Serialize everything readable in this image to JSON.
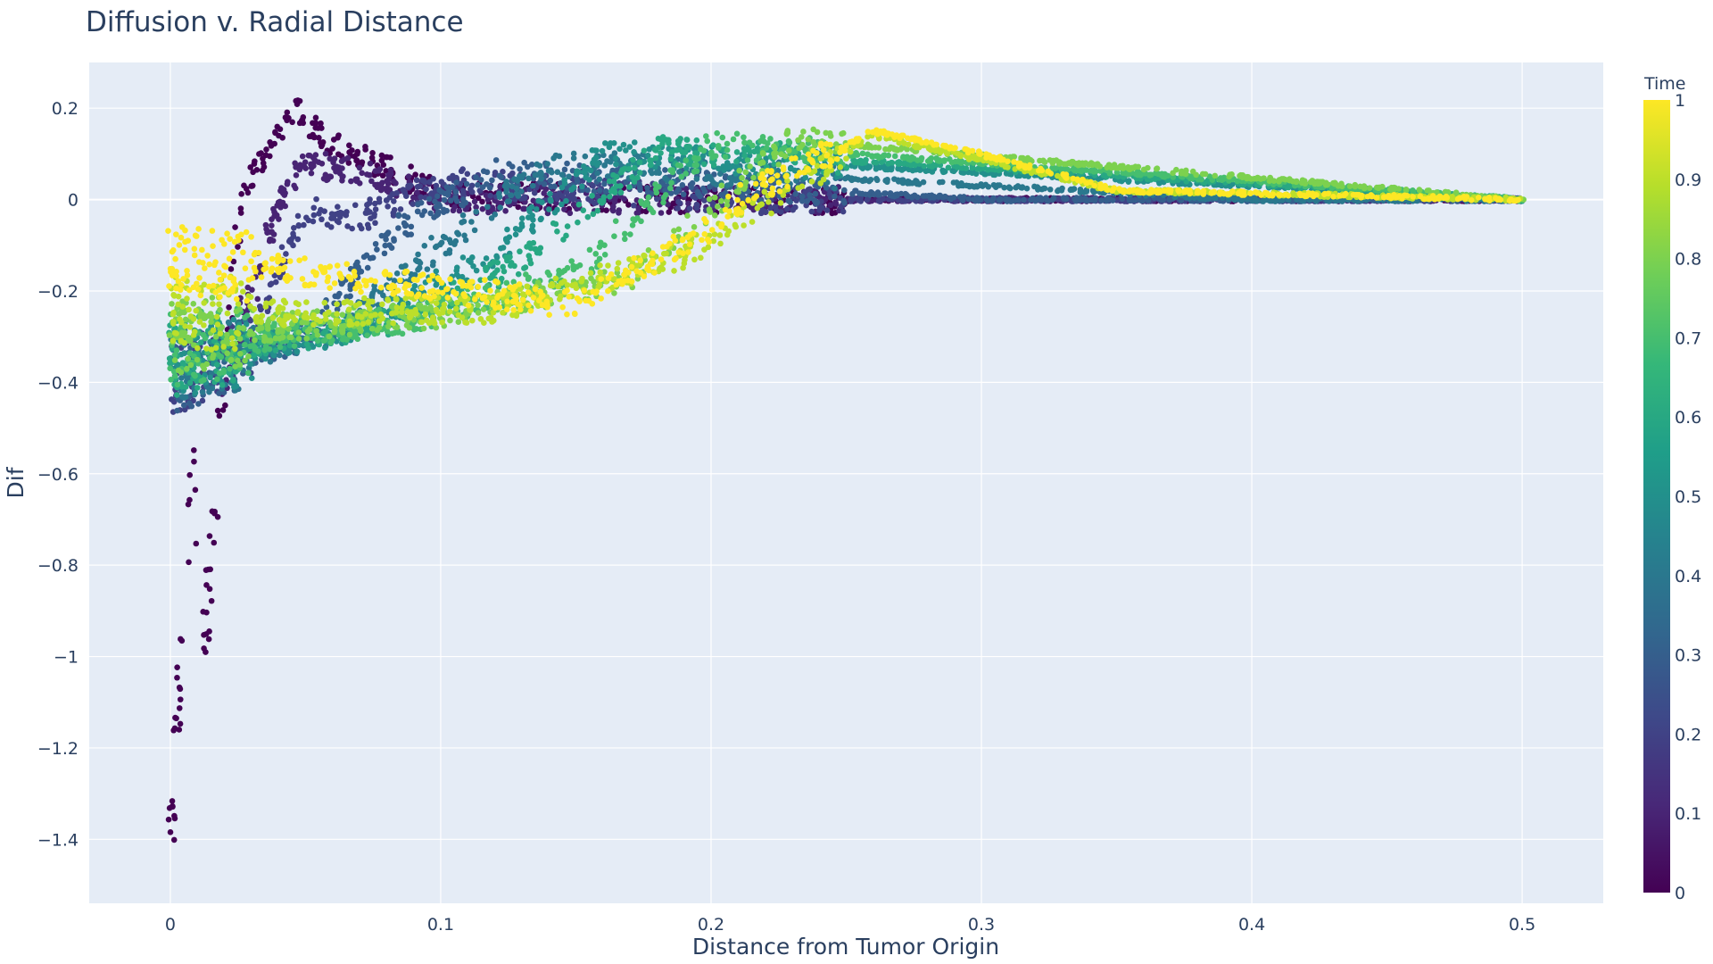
{
  "chart_data": {
    "type": "scatter",
    "title": "Diffusion v. Radial Distance",
    "xlabel": "Distance from Tumor Origin",
    "ylabel": "Dif",
    "xlim": [
      -0.03,
      0.53
    ],
    "ylim": [
      -1.54,
      0.3
    ],
    "x_ticks": [
      0,
      0.1,
      0.2,
      0.3,
      0.4,
      0.5
    ],
    "x_tick_labels": [
      "0",
      "0.1",
      "0.2",
      "0.3",
      "0.4",
      "0.5"
    ],
    "y_ticks": [
      0.2,
      0,
      -0.2,
      -0.4,
      -0.6,
      -0.8,
      -1,
      -1.2,
      -1.4
    ],
    "y_tick_labels": [
      "0.2",
      "0",
      "−0.2",
      "−0.4",
      "−0.6",
      "−0.8",
      "−1",
      "−1.2",
      "−1.4"
    ],
    "grid": true,
    "colorbar": {
      "title": "Time",
      "range": [
        0,
        1
      ],
      "ticks": [
        0,
        0.1,
        0.2,
        0.3,
        0.4,
        0.5,
        0.6,
        0.7,
        0.8,
        0.9,
        1
      ],
      "tick_labels": [
        "0",
        "0.1",
        "0.2",
        "0.3",
        "0.4",
        "0.5",
        "0.6",
        "0.7",
        "0.8",
        "0.9",
        "1"
      ],
      "colorscale": "Viridis",
      "colors": [
        "#440154",
        "#482878",
        "#3e4989",
        "#31688e",
        "#26828e",
        "#1f9e89",
        "#35b779",
        "#6ece58",
        "#b5de2b",
        "#fde725"
      ]
    },
    "series": [
      {
        "color_by": "Time",
        "time_values": [
          0,
          0.1,
          0.2,
          0.3,
          0.4,
          0.5,
          0.6,
          0.7,
          0.8,
          0.9,
          1.0
        ],
        "points_by_time": [
          [
            [
              0.0,
              -1.42
            ],
            [
              0.002,
              -1.2
            ],
            [
              0.005,
              -0.9
            ],
            [
              0.008,
              -0.6
            ],
            [
              0.012,
              -1.0
            ],
            [
              0.015,
              -0.8
            ],
            [
              0.018,
              -0.5
            ],
            [
              0.02,
              -0.42
            ],
            [
              0.025,
              -0.1
            ],
            [
              0.03,
              0.05
            ],
            [
              0.04,
              0.15
            ],
            [
              0.045,
              0.2
            ],
            [
              0.06,
              0.12
            ],
            [
              0.08,
              0.07
            ],
            [
              0.1,
              0.01
            ],
            [
              0.2,
              0.0
            ],
            [
              0.3,
              0.0
            ],
            [
              0.4,
              0.0
            ],
            [
              0.5,
              0.0
            ]
          ],
          [
            [
              0.02,
              -0.38
            ],
            [
              0.03,
              -0.22
            ],
            [
              0.04,
              0.0
            ],
            [
              0.05,
              0.08
            ],
            [
              0.07,
              0.06
            ],
            [
              0.1,
              0.0
            ],
            [
              0.2,
              0.0
            ],
            [
              0.3,
              0.0
            ],
            [
              0.4,
              0.0
            ],
            [
              0.5,
              0.0
            ]
          ],
          [
            [
              0.0,
              -0.4
            ],
            [
              0.03,
              -0.3
            ],
            [
              0.05,
              -0.02
            ],
            [
              0.07,
              -0.04
            ],
            [
              0.1,
              0.04
            ],
            [
              0.2,
              0.0
            ],
            [
              0.3,
              0.0
            ],
            [
              0.5,
              0.0
            ]
          ],
          [
            [
              0.0,
              -0.39
            ],
            [
              0.05,
              -0.3
            ],
            [
              0.08,
              -0.08
            ],
            [
              0.12,
              0.06
            ],
            [
              0.3,
              0.0
            ],
            [
              0.5,
              0.0
            ]
          ],
          [
            [
              0.0,
              -0.37
            ],
            [
              0.06,
              -0.3
            ],
            [
              0.1,
              -0.1
            ],
            [
              0.14,
              0.08
            ],
            [
              0.4,
              0.0
            ],
            [
              0.5,
              0.0
            ]
          ],
          [
            [
              0.0,
              -0.36
            ],
            [
              0.07,
              -0.28
            ],
            [
              0.12,
              -0.12
            ],
            [
              0.16,
              0.1
            ],
            [
              0.5,
              0.0
            ]
          ],
          [
            [
              0.0,
              -0.35
            ],
            [
              0.08,
              -0.27
            ],
            [
              0.13,
              -0.14
            ],
            [
              0.18,
              0.11
            ],
            [
              0.5,
              0.0
            ]
          ],
          [
            [
              0.0,
              -0.33
            ],
            [
              0.09,
              -0.26
            ],
            [
              0.15,
              -0.16
            ],
            [
              0.2,
              0.12
            ],
            [
              0.5,
              0.0
            ]
          ],
          [
            [
              0.0,
              -0.3
            ],
            [
              0.1,
              -0.25
            ],
            [
              0.17,
              -0.17
            ],
            [
              0.23,
              0.13
            ],
            [
              0.5,
              0.0
            ]
          ],
          [
            [
              0.0,
              -0.25
            ],
            [
              0.12,
              -0.24
            ],
            [
              0.19,
              -0.12
            ],
            [
              0.26,
              0.14
            ],
            [
              0.35,
              0.02
            ],
            [
              0.5,
              0.0
            ]
          ],
          [
            [
              0.0,
              -0.14
            ],
            [
              0.025,
              -0.14
            ],
            [
              0.15,
              -0.23
            ],
            [
              0.2,
              -0.06
            ],
            [
              0.21,
              0.0
            ],
            [
              0.26,
              0.15
            ],
            [
              0.3,
              0.1
            ],
            [
              0.35,
              0.02
            ],
            [
              0.5,
              0.0
            ]
          ]
        ]
      }
    ]
  }
}
